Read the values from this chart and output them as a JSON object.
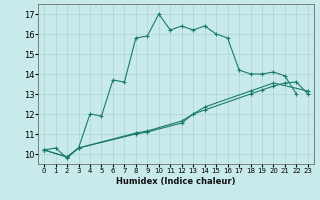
{
  "xlabel": "Humidex (Indice chaleur)",
  "bg_color": "#c8eaea",
  "grid_color": "#add4d4",
  "line_color": "#1a7a6e",
  "xlim": [
    -0.5,
    23.5
  ],
  "ylim": [
    9.5,
    17.5
  ],
  "yticks": [
    10,
    11,
    12,
    13,
    14,
    15,
    16,
    17
  ],
  "xticks": [
    0,
    1,
    2,
    3,
    4,
    5,
    6,
    7,
    8,
    9,
    10,
    11,
    12,
    13,
    14,
    15,
    16,
    17,
    18,
    19,
    20,
    21,
    22,
    23
  ],
  "line1_x": [
    0,
    1,
    2,
    3,
    4,
    5,
    6,
    7,
    8,
    9,
    10,
    11,
    12,
    13,
    14,
    15,
    16,
    17,
    18,
    19,
    20,
    21,
    22
  ],
  "line1_y": [
    10.2,
    10.3,
    9.8,
    10.3,
    12.0,
    11.9,
    13.7,
    13.6,
    15.8,
    15.9,
    17.0,
    16.2,
    16.4,
    16.2,
    16.4,
    16.0,
    15.8,
    14.2,
    14.0,
    14.0,
    14.1,
    13.9,
    13.0
  ],
  "line2_x": [
    0,
    2,
    3,
    8,
    9,
    12,
    13,
    14,
    18,
    19,
    20,
    21,
    22,
    23
  ],
  "line2_y": [
    10.2,
    9.85,
    10.3,
    11.0,
    11.1,
    11.55,
    12.0,
    12.2,
    13.0,
    13.2,
    13.4,
    13.55,
    13.6,
    13.0
  ],
  "line3_x": [
    0,
    2,
    3,
    8,
    9,
    12,
    14,
    18,
    20,
    23
  ],
  "line3_y": [
    10.2,
    9.85,
    10.3,
    11.05,
    11.15,
    11.65,
    12.35,
    13.15,
    13.55,
    13.15
  ]
}
